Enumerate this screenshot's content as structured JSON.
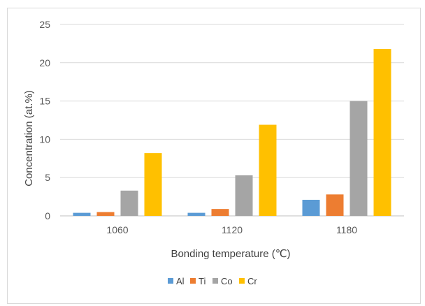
{
  "chart_data": {
    "type": "bar",
    "title": "",
    "xlabel": "Bonding temperature (℃)",
    "ylabel": "Concentration (at.%)",
    "categories": [
      "1060",
      "1120",
      "1180"
    ],
    "series": [
      {
        "name": "Al",
        "color": "#5b9bd5",
        "values": [
          0.4,
          0.4,
          2.1
        ]
      },
      {
        "name": "Ti",
        "color": "#ed7d31",
        "values": [
          0.5,
          0.9,
          2.8
        ]
      },
      {
        "name": "Co",
        "color": "#a5a5a5",
        "values": [
          3.3,
          5.3,
          15.0
        ]
      },
      {
        "name": "Cr",
        "color": "#ffc000",
        "values": [
          8.2,
          11.9,
          21.8
        ]
      }
    ],
    "ylim": [
      0,
      25
    ],
    "yticks": [
      0,
      5,
      10,
      15,
      20,
      25
    ],
    "grid": true,
    "legend_position": "bottom"
  }
}
